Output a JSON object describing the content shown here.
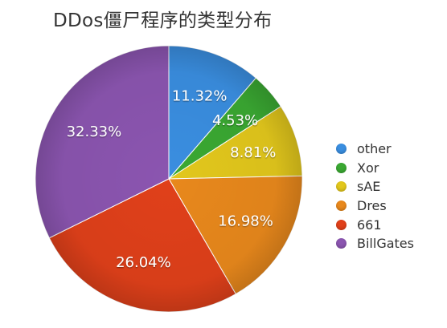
{
  "title": "DDos僵尸程序的类型分布",
  "chart_data": {
    "type": "pie",
    "title": "DDos僵尸程序的类型分布",
    "start_angle_deg": 0,
    "direction": "clockwise",
    "legend_position": "right",
    "slices": [
      {
        "label": "other",
        "value": 11.32,
        "value_label": "11.32%",
        "color": "#3a8ee0"
      },
      {
        "label": "Xor",
        "value": 4.53,
        "value_label": "4.53%",
        "color": "#3aa832"
      },
      {
        "label": "sAE",
        "value": 8.81,
        "value_label": "8.81%",
        "color": "#e2c71c"
      },
      {
        "label": "Dres",
        "value": 16.98,
        "value_label": "16.98%",
        "color": "#e8881c"
      },
      {
        "label": "661",
        "value": 26.04,
        "value_label": "26.04%",
        "color": "#e0401a"
      },
      {
        "label": "BillGates",
        "value": 32.33,
        "value_label": "32.33%",
        "color": "#8b55b0"
      }
    ]
  }
}
